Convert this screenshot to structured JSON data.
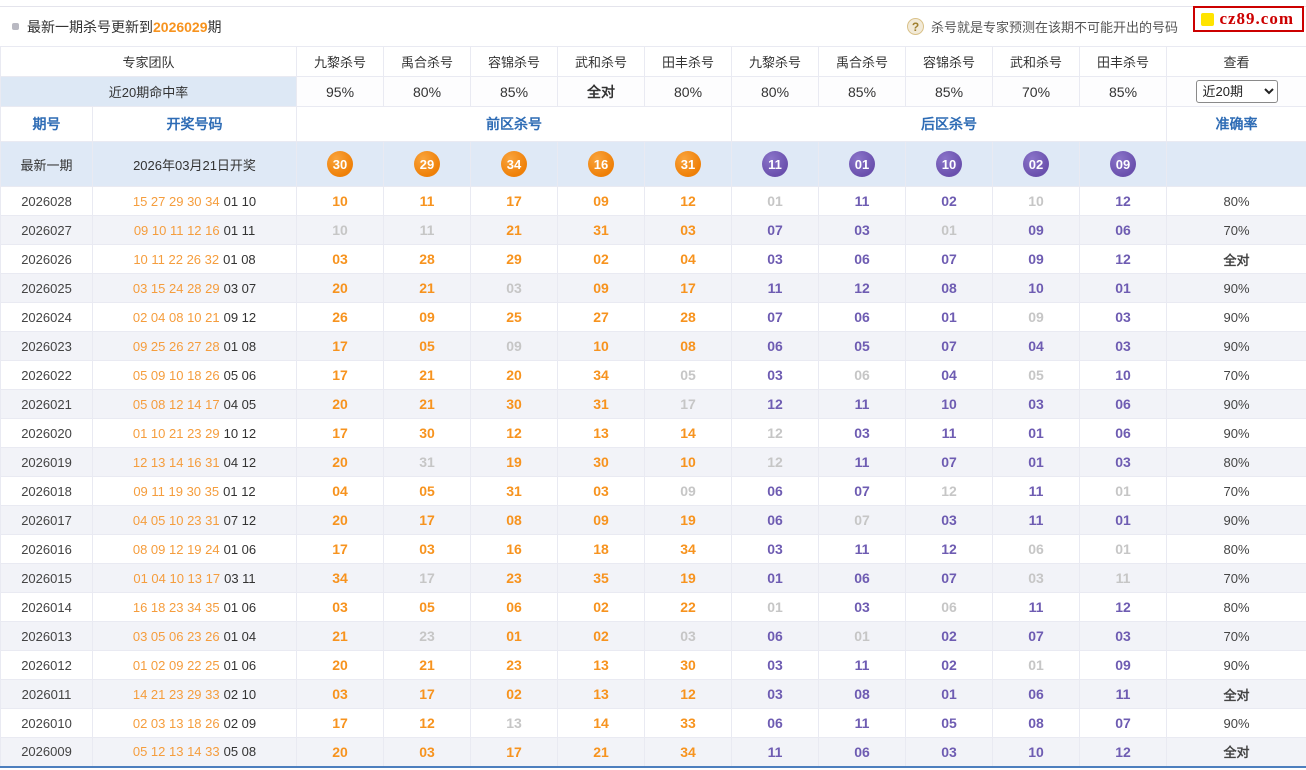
{
  "topbar": {
    "title_prefix": "最新一期杀号更新到",
    "title_period": "2026029",
    "title_suffix": "期",
    "help_icon": "?",
    "note": "杀号就是专家预测在该期不可能开出的号码",
    "logo_text": "cz89.com"
  },
  "colors": {
    "front_kill_orange": "#f7931e",
    "back_kill_purple": "#6e5cb2",
    "miss_gray": "#c6c6c6",
    "header_blue": "#2e6cb5",
    "logo_red": "#cc0000",
    "logo_yellow": "#ffe400",
    "latest_row_bg": "#dfe9f6",
    "alt_row_bg": "#f2f3f8"
  },
  "table": {
    "expert_team_label": "专家团队",
    "hit_rate_label": "近20期命中率",
    "expert_columns": [
      "九黎杀号",
      "禹合杀号",
      "容锦杀号",
      "武和杀号",
      "田丰杀号",
      "九黎杀号",
      "禹合杀号",
      "容锦杀号",
      "武和杀号",
      "田丰杀号"
    ],
    "view_label": "查看",
    "hit_rates": [
      "95%",
      "80%",
      "85%",
      "全对",
      "80%",
      "80%",
      "85%",
      "85%",
      "70%",
      "85%"
    ],
    "range_select": {
      "value": "近20期",
      "options": [
        "近20期"
      ]
    },
    "sub_headers": {
      "period": "期号",
      "draw": "开奖号码",
      "front": "前区杀号",
      "back": "后区杀号",
      "accuracy": "准确率"
    },
    "latest_row": {
      "period_label": "最新一期",
      "draw_label": "2026年03月21日开奖",
      "front_balls": [
        "30",
        "29",
        "34",
        "16",
        "31"
      ],
      "back_balls": [
        "11",
        "01",
        "10",
        "02",
        "09"
      ]
    },
    "rows": [
      {
        "period": "2026028",
        "draw_front": "15 27 29 30 34",
        "draw_back": "01 10",
        "front": [
          "10",
          "11",
          "17",
          "09",
          "12"
        ],
        "front_miss": [
          0,
          0,
          0,
          0,
          0
        ],
        "back": [
          "01",
          "11",
          "02",
          "10",
          "12"
        ],
        "back_miss": [
          1,
          0,
          0,
          1,
          0
        ],
        "accuracy": "80%"
      },
      {
        "period": "2026027",
        "draw_front": "09 10 11 12 16",
        "draw_back": "01 11",
        "front": [
          "10",
          "11",
          "21",
          "31",
          "03"
        ],
        "front_miss": [
          1,
          1,
          0,
          0,
          0
        ],
        "back": [
          "07",
          "03",
          "01",
          "09",
          "06"
        ],
        "back_miss": [
          0,
          0,
          1,
          0,
          0
        ],
        "accuracy": "70%"
      },
      {
        "period": "2026026",
        "draw_front": "10 11 22 26 32",
        "draw_back": "01 08",
        "front": [
          "03",
          "28",
          "29",
          "02",
          "04"
        ],
        "front_miss": [
          0,
          0,
          0,
          0,
          0
        ],
        "back": [
          "03",
          "06",
          "07",
          "09",
          "12"
        ],
        "back_miss": [
          0,
          0,
          0,
          0,
          0
        ],
        "accuracy": "全对"
      },
      {
        "period": "2026025",
        "draw_front": "03 15 24 28 29",
        "draw_back": "03 07",
        "front": [
          "20",
          "21",
          "03",
          "09",
          "17"
        ],
        "front_miss": [
          0,
          0,
          1,
          0,
          0
        ],
        "back": [
          "11",
          "12",
          "08",
          "10",
          "01"
        ],
        "back_miss": [
          0,
          0,
          0,
          0,
          0
        ],
        "accuracy": "90%"
      },
      {
        "period": "2026024",
        "draw_front": "02 04 08 10 21",
        "draw_back": "09 12",
        "front": [
          "26",
          "09",
          "25",
          "27",
          "28"
        ],
        "front_miss": [
          0,
          0,
          0,
          0,
          0
        ],
        "back": [
          "07",
          "06",
          "01",
          "09",
          "03"
        ],
        "back_miss": [
          0,
          0,
          0,
          1,
          0
        ],
        "accuracy": "90%"
      },
      {
        "period": "2026023",
        "draw_front": "09 25 26 27 28",
        "draw_back": "01 08",
        "front": [
          "17",
          "05",
          "09",
          "10",
          "08"
        ],
        "front_miss": [
          0,
          0,
          1,
          0,
          0
        ],
        "back": [
          "06",
          "05",
          "07",
          "04",
          "03"
        ],
        "back_miss": [
          0,
          0,
          0,
          0,
          0
        ],
        "accuracy": "90%"
      },
      {
        "period": "2026022",
        "draw_front": "05 09 10 18 26",
        "draw_back": "05 06",
        "front": [
          "17",
          "21",
          "20",
          "34",
          "05"
        ],
        "front_miss": [
          0,
          0,
          0,
          0,
          1
        ],
        "back": [
          "03",
          "06",
          "04",
          "05",
          "10"
        ],
        "back_miss": [
          0,
          1,
          0,
          1,
          0
        ],
        "accuracy": "70%"
      },
      {
        "period": "2026021",
        "draw_front": "05 08 12 14 17",
        "draw_back": "04 05",
        "front": [
          "20",
          "21",
          "30",
          "31",
          "17"
        ],
        "front_miss": [
          0,
          0,
          0,
          0,
          1
        ],
        "back": [
          "12",
          "11",
          "10",
          "03",
          "06"
        ],
        "back_miss": [
          0,
          0,
          0,
          0,
          0
        ],
        "accuracy": "90%"
      },
      {
        "period": "2026020",
        "draw_front": "01 10 21 23 29",
        "draw_back": "10 12",
        "front": [
          "17",
          "30",
          "12",
          "13",
          "14"
        ],
        "front_miss": [
          0,
          0,
          0,
          0,
          0
        ],
        "back": [
          "12",
          "03",
          "11",
          "01",
          "06"
        ],
        "back_miss": [
          1,
          0,
          0,
          0,
          0
        ],
        "accuracy": "90%"
      },
      {
        "period": "2026019",
        "draw_front": "12 13 14 16 31",
        "draw_back": "04 12",
        "front": [
          "20",
          "31",
          "19",
          "30",
          "10"
        ],
        "front_miss": [
          0,
          1,
          0,
          0,
          0
        ],
        "back": [
          "12",
          "11",
          "07",
          "01",
          "03"
        ],
        "back_miss": [
          1,
          0,
          0,
          0,
          0
        ],
        "accuracy": "80%"
      },
      {
        "period": "2026018",
        "draw_front": "09 11 19 30 35",
        "draw_back": "01 12",
        "front": [
          "04",
          "05",
          "31",
          "03",
          "09"
        ],
        "front_miss": [
          0,
          0,
          0,
          0,
          1
        ],
        "back": [
          "06",
          "07",
          "12",
          "11",
          "01"
        ],
        "back_miss": [
          0,
          0,
          1,
          0,
          1
        ],
        "accuracy": "70%"
      },
      {
        "period": "2026017",
        "draw_front": "04 05 10 23 31",
        "draw_back": "07 12",
        "front": [
          "20",
          "17",
          "08",
          "09",
          "19"
        ],
        "front_miss": [
          0,
          0,
          0,
          0,
          0
        ],
        "back": [
          "06",
          "07",
          "03",
          "11",
          "01"
        ],
        "back_miss": [
          0,
          1,
          0,
          0,
          0
        ],
        "accuracy": "90%"
      },
      {
        "period": "2026016",
        "draw_front": "08 09 12 19 24",
        "draw_back": "01 06",
        "front": [
          "17",
          "03",
          "16",
          "18",
          "34"
        ],
        "front_miss": [
          0,
          0,
          0,
          0,
          0
        ],
        "back": [
          "03",
          "11",
          "12",
          "06",
          "01"
        ],
        "back_miss": [
          0,
          0,
          0,
          1,
          1
        ],
        "accuracy": "80%"
      },
      {
        "period": "2026015",
        "draw_front": "01 04 10 13 17",
        "draw_back": "03 11",
        "front": [
          "34",
          "17",
          "23",
          "35",
          "19"
        ],
        "front_miss": [
          0,
          1,
          0,
          0,
          0
        ],
        "back": [
          "01",
          "06",
          "07",
          "03",
          "11"
        ],
        "back_miss": [
          0,
          0,
          0,
          1,
          1
        ],
        "accuracy": "70%"
      },
      {
        "period": "2026014",
        "draw_front": "16 18 23 34 35",
        "draw_back": "01 06",
        "front": [
          "03",
          "05",
          "06",
          "02",
          "22"
        ],
        "front_miss": [
          0,
          0,
          0,
          0,
          0
        ],
        "back": [
          "01",
          "03",
          "06",
          "11",
          "12"
        ],
        "back_miss": [
          1,
          0,
          1,
          0,
          0
        ],
        "accuracy": "80%"
      },
      {
        "period": "2026013",
        "draw_front": "03 05 06 23 26",
        "draw_back": "01 04",
        "front": [
          "21",
          "23",
          "01",
          "02",
          "03"
        ],
        "front_miss": [
          0,
          1,
          0,
          0,
          1
        ],
        "back": [
          "06",
          "01",
          "02",
          "07",
          "03"
        ],
        "back_miss": [
          0,
          1,
          0,
          0,
          0
        ],
        "accuracy": "70%"
      },
      {
        "period": "2026012",
        "draw_front": "01 02 09 22 25",
        "draw_back": "01 06",
        "front": [
          "20",
          "21",
          "23",
          "13",
          "30"
        ],
        "front_miss": [
          0,
          0,
          0,
          0,
          0
        ],
        "back": [
          "03",
          "11",
          "02",
          "01",
          "09"
        ],
        "back_miss": [
          0,
          0,
          0,
          1,
          0
        ],
        "accuracy": "90%"
      },
      {
        "period": "2026011",
        "draw_front": "14 21 23 29 33",
        "draw_back": "02 10",
        "front": [
          "03",
          "17",
          "02",
          "13",
          "12"
        ],
        "front_miss": [
          0,
          0,
          0,
          0,
          0
        ],
        "back": [
          "03",
          "08",
          "01",
          "06",
          "11"
        ],
        "back_miss": [
          0,
          0,
          0,
          0,
          0
        ],
        "accuracy": "全对"
      },
      {
        "period": "2026010",
        "draw_front": "02 03 13 18 26",
        "draw_back": "02 09",
        "front": [
          "17",
          "12",
          "13",
          "14",
          "33"
        ],
        "front_miss": [
          0,
          0,
          1,
          0,
          0
        ],
        "back": [
          "06",
          "11",
          "05",
          "08",
          "07"
        ],
        "back_miss": [
          0,
          0,
          0,
          0,
          0
        ],
        "accuracy": "90%"
      },
      {
        "period": "2026009",
        "draw_front": "05 12 13 14 33",
        "draw_back": "05 08",
        "front": [
          "20",
          "03",
          "17",
          "21",
          "34"
        ],
        "front_miss": [
          0,
          0,
          0,
          0,
          0
        ],
        "back": [
          "11",
          "06",
          "03",
          "10",
          "12"
        ],
        "back_miss": [
          0,
          0,
          0,
          0,
          0
        ],
        "accuracy": "全对"
      }
    ]
  }
}
